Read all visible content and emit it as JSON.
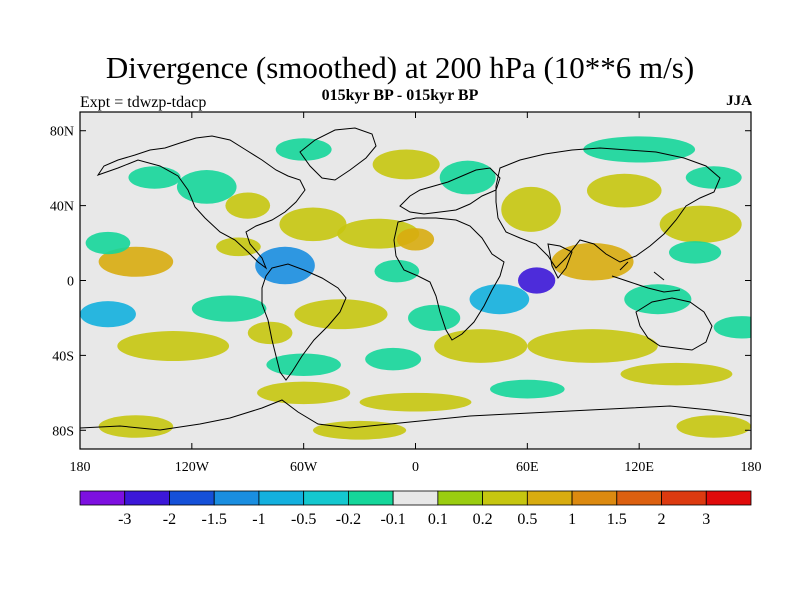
{
  "title": "Divergence (smoothed) at 200 hPa (10**6 m/s)",
  "subtitle": "015kyr BP - 015kyr BP",
  "experiment": "Expt = tdwzp-tdacp",
  "season": "JJA",
  "map": {
    "projection": "cylindrical equidistant",
    "lon_range": [
      -180,
      180
    ],
    "lat_range": [
      -90,
      90
    ],
    "x_ticks": [
      {
        "lon": -180,
        "label": "180"
      },
      {
        "lon": -120,
        "label": "120W"
      },
      {
        "lon": -60,
        "label": "60W"
      },
      {
        "lon": 0,
        "label": "0"
      },
      {
        "lon": 60,
        "label": "60E"
      },
      {
        "lon": 120,
        "label": "120E"
      },
      {
        "lon": 180,
        "label": "180"
      }
    ],
    "y_ticks": [
      {
        "lat": 80,
        "label": "80N"
      },
      {
        "lat": 40,
        "label": "40N"
      },
      {
        "lat": 0,
        "label": "0"
      },
      {
        "lat": -40,
        "label": "40S"
      },
      {
        "lat": -80,
        "label": "80S"
      }
    ],
    "background_color": "#e8e8e8",
    "coastline_color": "#000000"
  },
  "colorbar": {
    "colors": [
      "#7d10e0",
      "#3c17d8",
      "#1550d8",
      "#1a8ee0",
      "#13b0de",
      "#14c8cf",
      "#15d69a",
      "#e8e8e8",
      "#9acd10",
      "#c6c610",
      "#d8ac10",
      "#dc8a10",
      "#dc6010",
      "#dc3a10",
      "#e00a0a"
    ],
    "levels": [
      "-3",
      "-2",
      "-1.5",
      "-1",
      "-0.5",
      "-0.2",
      "-0.1",
      "0.1",
      "0.2",
      "0.5",
      "1",
      "1.5",
      "2",
      "3"
    ]
  },
  "field_blobs": [
    {
      "lon": -112,
      "lat": 50,
      "rx": 16,
      "ry": 9,
      "level": 3
    },
    {
      "lon": -90,
      "lat": 40,
      "rx": 12,
      "ry": 7,
      "level": 4
    },
    {
      "lon": -70,
      "lat": 8,
      "rx": 16,
      "ry": 10,
      "level": 1
    },
    {
      "lon": -55,
      "lat": 30,
      "rx": 18,
      "ry": 9,
      "level": 4
    },
    {
      "lon": -20,
      "lat": 25,
      "rx": 22,
      "ry": 8,
      "level": 4
    },
    {
      "lon": -5,
      "lat": 62,
      "rx": 18,
      "ry": 8,
      "level": 4
    },
    {
      "lon": 28,
      "lat": 55,
      "rx": 15,
      "ry": 9,
      "level": 3
    },
    {
      "lon": 62,
      "lat": 38,
      "rx": 16,
      "ry": 12,
      "level": 4
    },
    {
      "lon": 112,
      "lat": 48,
      "rx": 20,
      "ry": 9,
      "level": 4
    },
    {
      "lon": 153,
      "lat": 30,
      "rx": 22,
      "ry": 10,
      "level": 4
    },
    {
      "lon": -150,
      "lat": 10,
      "rx": 20,
      "ry": 8,
      "level": 5
    },
    {
      "lon": 95,
      "lat": 10,
      "rx": 22,
      "ry": 10,
      "level": 5
    },
    {
      "lon": 65,
      "lat": 0,
      "rx": 10,
      "ry": 7,
      "level": 0
    },
    {
      "lon": 45,
      "lat": -10,
      "rx": 16,
      "ry": 8,
      "level": 2
    },
    {
      "lon": 35,
      "lat": -35,
      "rx": 25,
      "ry": 9,
      "level": 4
    },
    {
      "lon": -40,
      "lat": -18,
      "rx": 25,
      "ry": 8,
      "level": 4
    },
    {
      "lon": -165,
      "lat": -18,
      "rx": 15,
      "ry": 7,
      "level": 2
    },
    {
      "lon": -130,
      "lat": -35,
      "rx": 30,
      "ry": 8,
      "level": 4
    },
    {
      "lon": 95,
      "lat": -35,
      "rx": 35,
      "ry": 9,
      "level": 4
    },
    {
      "lon": 140,
      "lat": -50,
      "rx": 30,
      "ry": 6,
      "level": 4
    },
    {
      "lon": -60,
      "lat": -60,
      "rx": 25,
      "ry": 6,
      "level": 4
    },
    {
      "lon": -30,
      "lat": -80,
      "rx": 25,
      "ry": 5,
      "level": 4
    },
    {
      "lon": -150,
      "lat": -78,
      "rx": 20,
      "ry": 6,
      "level": 4
    },
    {
      "lon": 160,
      "lat": -78,
      "rx": 20,
      "ry": 6,
      "level": 4
    },
    {
      "lon": 0,
      "lat": -65,
      "rx": 30,
      "ry": 5,
      "level": 4
    },
    {
      "lon": -165,
      "lat": 20,
      "rx": 12,
      "ry": 6,
      "level": 3
    },
    {
      "lon": -10,
      "lat": 5,
      "rx": 12,
      "ry": 6,
      "level": 3
    },
    {
      "lon": 130,
      "lat": -10,
      "rx": 18,
      "ry": 8,
      "level": 3
    },
    {
      "lon": -100,
      "lat": -15,
      "rx": 20,
      "ry": 7,
      "level": 3
    },
    {
      "lon": 120,
      "lat": 70,
      "rx": 30,
      "ry": 7,
      "level": 3
    },
    {
      "lon": -60,
      "lat": 70,
      "rx": 15,
      "ry": 6,
      "level": 3
    },
    {
      "lon": 175,
      "lat": -25,
      "rx": 15,
      "ry": 6,
      "level": 3
    },
    {
      "lon": -95,
      "lat": 18,
      "rx": 12,
      "ry": 5,
      "level": 4
    },
    {
      "lon": 10,
      "lat": -20,
      "rx": 14,
      "ry": 7,
      "level": 3
    },
    {
      "lon": 160,
      "lat": 55,
      "rx": 15,
      "ry": 6,
      "level": 3
    },
    {
      "lon": -78,
      "lat": -28,
      "rx": 12,
      "ry": 6,
      "level": 4
    },
    {
      "lon": -12,
      "lat": -42,
      "rx": 15,
      "ry": 6,
      "level": 3
    },
    {
      "lon": 60,
      "lat": -58,
      "rx": 20,
      "ry": 5,
      "level": 3
    },
    {
      "lon": 150,
      "lat": 15,
      "rx": 14,
      "ry": 6,
      "level": 3
    },
    {
      "lon": -140,
      "lat": 55,
      "rx": 14,
      "ry": 6,
      "level": 3
    },
    {
      "lon": 0,
      "lat": 22,
      "rx": 10,
      "ry": 6,
      "level": 5
    },
    {
      "lon": -60,
      "lat": -45,
      "rx": 20,
      "ry": 6,
      "level": 3
    }
  ],
  "blob_colors": [
    "#3c17d8",
    "#1a8ee0",
    "#13b0de",
    "#15d69a",
    "#c6c610",
    "#d8ac10"
  ]
}
